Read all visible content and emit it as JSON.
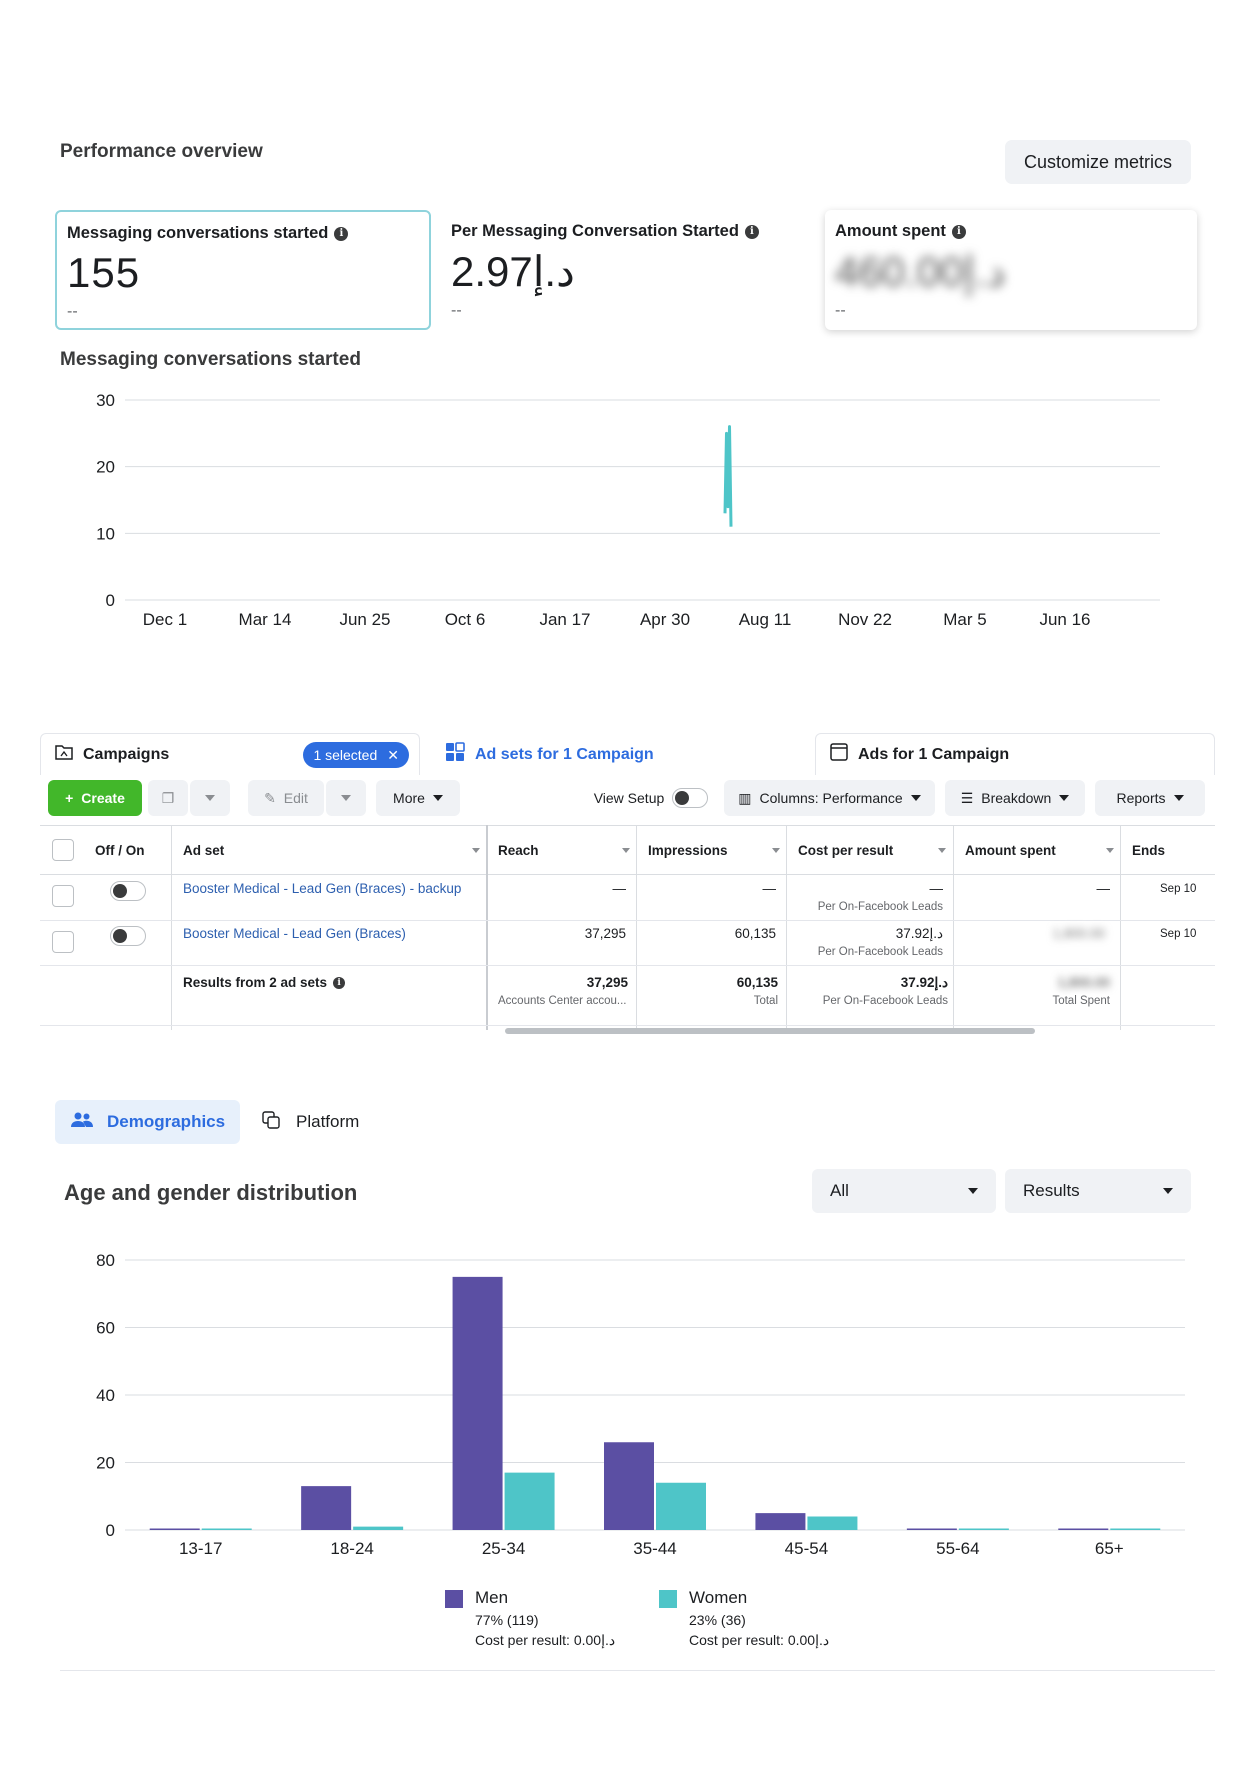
{
  "overview": {
    "title": "Performance overview",
    "customize_label": "Customize metrics",
    "cards": [
      {
        "label": "Messaging conversations started",
        "value": "155",
        "delta": "--"
      },
      {
        "label": "Per Messaging Conversation Started",
        "value": "2.97د.إ",
        "delta": "--"
      },
      {
        "label": "Amount spent",
        "value": "460.00د.إ",
        "delta": "--"
      }
    ]
  },
  "line_chart_title": "Messaging conversations started",
  "chart_data": [
    {
      "type": "line",
      "title": "Messaging conversations started",
      "x_tick_labels": [
        "Dec 1",
        "Mar 14",
        "Jun 25",
        "Oct 6",
        "Jan 17",
        "Apr 30",
        "Aug 11",
        "Nov 22",
        "Mar 5",
        "Jun 16"
      ],
      "y_ticks": [
        0,
        10,
        20,
        30
      ],
      "ylim": [
        0,
        30
      ],
      "grid": true,
      "series": [
        {
          "color": "#4ec5c8",
          "x_position": 5.63,
          "values": [
            13,
            25,
            14,
            26,
            11
          ]
        }
      ]
    },
    {
      "type": "bar",
      "title": "Age and gender distribution",
      "categories": [
        "13-17",
        "18-24",
        "25-34",
        "35-44",
        "45-54",
        "55-64",
        "65+"
      ],
      "y_ticks": [
        0,
        20,
        40,
        60,
        80
      ],
      "ylim": [
        0,
        80
      ],
      "grid": true,
      "legend_position": "bottom",
      "series": [
        {
          "name": "Men",
          "color": "#5b4fa3",
          "values": [
            0,
            13,
            75,
            26,
            5,
            0,
            0
          ]
        },
        {
          "name": "Women",
          "color": "#4ec5c8",
          "values": [
            0,
            1,
            17,
            14,
            4,
            0,
            0
          ]
        }
      ]
    }
  ],
  "tabs": {
    "campaigns": "Campaigns",
    "selected_chip": "1 selected",
    "adsets": "Ad sets for 1 Campaign",
    "ads": "Ads for 1 Campaign"
  },
  "toolbar": {
    "create": "Create",
    "edit": "Edit",
    "more": "More",
    "view_setup": "View Setup",
    "columns": "Columns: Performance",
    "breakdown": "Breakdown",
    "reports": "Reports"
  },
  "table": {
    "headers": [
      "Off / On",
      "Ad set",
      "Reach",
      "Impressions",
      "Cost per result",
      "Amount spent",
      "Ends"
    ],
    "rows": [
      {
        "name": "Booster Medical - Lead Gen (Braces) - backup",
        "reach": "—",
        "impressions": "—",
        "cost": "—",
        "cost_sub": "Per On-Facebook Leads",
        "spent": "—",
        "ends": "Sep 10"
      },
      {
        "name": "Booster Medical - Lead Gen (Braces)",
        "reach": "37,295",
        "impressions": "60,135",
        "cost": "37.92د.إ",
        "cost_sub": "Per On-Facebook Leads",
        "spent": "1,800.00",
        "ends": "Sep 10"
      }
    ],
    "summary": {
      "label": "Results from 2 ad sets",
      "reach": "37,295",
      "reach_sub": "Accounts Center accou...",
      "impressions": "60,135",
      "impressions_sub": "Total",
      "cost": "37.92د.إ",
      "cost_sub": "Per On-Facebook Leads",
      "spent": "1,800.00",
      "spent_sub": "Total Spent"
    }
  },
  "demographics": {
    "tab_demographics": "Demographics",
    "tab_platform": "Platform",
    "title": "Age and gender distribution",
    "filter_all": "All",
    "filter_results": "Results",
    "legend": [
      {
        "name": "Men",
        "pct": "77% (119)",
        "cost": "Cost per result: 0.00د.إ"
      },
      {
        "name": "Women",
        "pct": "23% (36)",
        "cost": "Cost per result: 0.00د.إ"
      }
    ]
  }
}
